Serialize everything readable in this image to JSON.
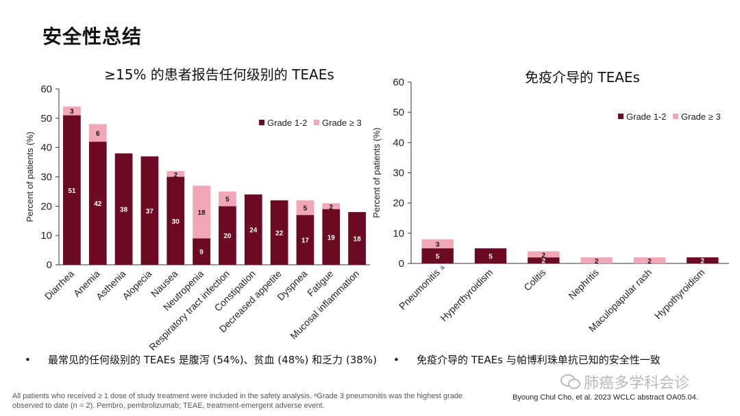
{
  "page": {
    "title": "安全性总结",
    "bullet_left": "最常见的任何级别的 TEAEs 是腹泻 (54%)、贫血 (48%) 和乏力 (38%)",
    "bullet_right": "免疫介导的 TEAEs 与帕博利珠单抗已知的安全性一致",
    "bullet_symbol": "•",
    "footnote": "All patients who received ≥ 1 dose of study treatment were included in the safety analysis. ᵃGrade 3 pneumonitis was the highest grade observed to date (n = 2). Pembro, pembrolizumab; TEAE, treatment-emergent adverse event.",
    "citation": "Byoung Chul Cho, et al. 2023 WCLC abstract OA05.04.",
    "watermark": "肺癌多学科会诊"
  },
  "chart_data": [
    {
      "type": "bar",
      "stacked": true,
      "title": "≥15% 的患者报告任何级别的 TEAEs",
      "ylabel": "Percent of patients (%)",
      "ylim": [
        0,
        60
      ],
      "yticks": [
        0,
        10,
        20,
        30,
        40,
        50,
        60
      ],
      "legend_position": "top-right",
      "categories": [
        "Diarrhea",
        "Anemia",
        "Asthenia",
        "Alopecia",
        "Nausea",
        "Neutropenia",
        "Respiratory tract infection",
        "Constipation",
        "Decreased appetite",
        "Dyspnea",
        "Fatigue",
        "Mucosal inflammation"
      ],
      "series": [
        {
          "name": "Grade 1-2",
          "color": "#6b0a22",
          "values": [
            51,
            42,
            38,
            37,
            30,
            9,
            20,
            24,
            22,
            17,
            19,
            18
          ]
        },
        {
          "name": "Grade ≥ 3",
          "color": "#f1a7b8",
          "values": [
            3,
            6,
            null,
            null,
            2,
            18,
            5,
            null,
            null,
            5,
            2,
            null
          ]
        }
      ]
    },
    {
      "type": "bar",
      "stacked": true,
      "title": "免疫介导的 TEAEs",
      "ylabel": "Percent of patients (%)",
      "ylim": [
        0,
        60
      ],
      "yticks": [
        0,
        10,
        20,
        30,
        40,
        50,
        60
      ],
      "legend_position": "top-right",
      "categories": [
        "Pneumonitis",
        "Hyperthyroidism",
        "Colitis",
        "Nephritis",
        "Maculopapular rash",
        "Hypothyroidism"
      ],
      "category_superscripts": {
        "Pneumonitis": "a"
      },
      "series": [
        {
          "name": "Grade 1-2",
          "color": "#6b0a22",
          "values": [
            5,
            5,
            2,
            null,
            null,
            2
          ]
        },
        {
          "name": "Grade ≥ 3",
          "color": "#f1a7b8",
          "values": [
            3,
            null,
            2,
            2,
            2,
            null
          ]
        }
      ]
    }
  ]
}
